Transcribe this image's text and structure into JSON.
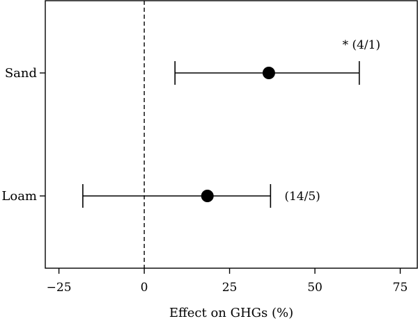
{
  "chart_data": {
    "type": "forest",
    "xlabel": "Effect on GHGs (%)",
    "ylabel": "",
    "title": "",
    "xlim": [
      -29,
      80
    ],
    "xticks": [
      -25,
      0,
      25,
      50,
      75
    ],
    "xtick_labels": [
      "−25",
      "0",
      "25",
      "50",
      "75"
    ],
    "reference_line": 0,
    "grid": false,
    "categories": [
      "Sand",
      "Loam"
    ],
    "points": [
      {
        "category": "Sand",
        "estimate": 36.5,
        "ci_low": 9,
        "ci_high": 63,
        "annotation": "* (4/1)"
      },
      {
        "category": "Loam",
        "estimate": 18.5,
        "ci_low": -18,
        "ci_high": 37,
        "annotation": "(14/5)"
      }
    ]
  }
}
